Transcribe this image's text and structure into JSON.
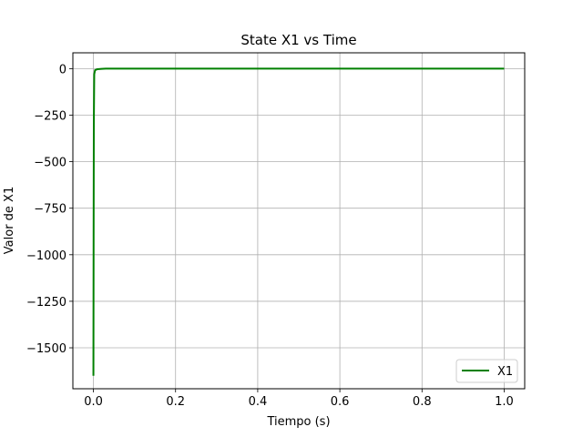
{
  "chart_data": {
    "type": "line",
    "title": "State X1 vs Time",
    "xlabel": "Tiempo (s)",
    "ylabel": "Valor de X1",
    "xlim": [
      -0.05,
      1.05
    ],
    "ylim": [
      -1720,
      85
    ],
    "x_ticks": [
      0.0,
      0.2,
      0.4,
      0.6,
      0.8,
      1.0
    ],
    "x_tick_labels": [
      "0.0",
      "0.2",
      "0.4",
      "0.6",
      "0.8",
      "1.0"
    ],
    "y_ticks": [
      0,
      -250,
      -500,
      -750,
      -1000,
      -1250,
      -1500
    ],
    "y_tick_labels": [
      "0",
      "−250",
      "−500",
      "−750",
      "−1000",
      "−1250",
      "−1500"
    ],
    "grid": true,
    "legend_position": "lower-right",
    "series": [
      {
        "name": "X1",
        "color": "#008000",
        "x": [
          0.0,
          0.0005,
          0.001,
          0.002,
          0.004,
          0.01,
          0.02,
          0.03,
          0.05,
          0.1,
          0.2,
          0.4,
          0.6,
          0.8,
          1.0
        ],
        "y": [
          -1650,
          -900,
          -300,
          -30,
          -8,
          -3,
          -1,
          0,
          0,
          0,
          0,
          0,
          0,
          0,
          0
        ]
      }
    ]
  }
}
